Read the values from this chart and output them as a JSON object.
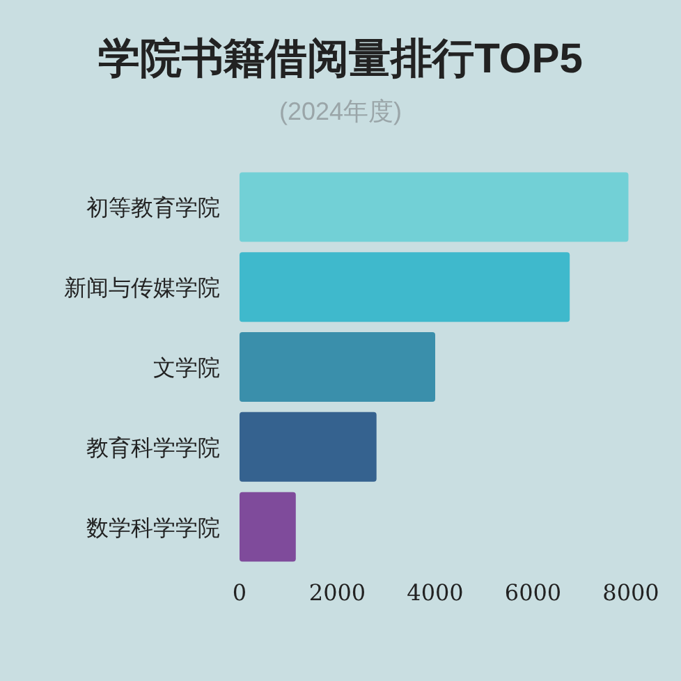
{
  "chart_data": {
    "type": "bar",
    "orientation": "horizontal",
    "title": "学院书籍借阅量排行TOP5",
    "subtitle": "(2024年度)",
    "categories": [
      "初等教育学院",
      "新闻与传媒学院",
      "文学院",
      "教育科学学院",
      "数学科学学院"
    ],
    "values": [
      7950,
      6750,
      4000,
      2800,
      1150
    ],
    "colors": [
      "#72d0d6",
      "#3fb9cc",
      "#3a8fab",
      "#35628f",
      "#7f4b9b"
    ],
    "xlim": [
      0,
      8000
    ],
    "xticks": [
      0,
      2000,
      4000,
      6000,
      8000
    ],
    "grid": false
  }
}
